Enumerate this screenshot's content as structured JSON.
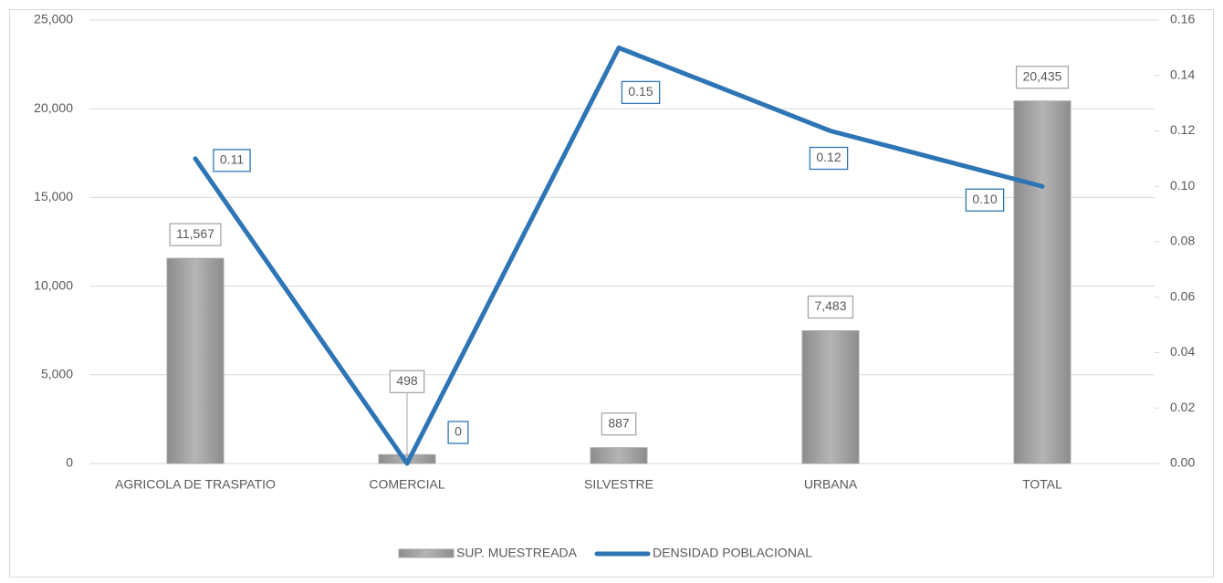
{
  "chart_data": {
    "type": "bar_line",
    "categories": [
      "AGRICOLA DE TRASPATIO",
      "COMERCIAL",
      "SILVESTRE",
      "URBANA",
      "TOTAL"
    ],
    "series": [
      {
        "name": "SUP. MUESTREADA",
        "type": "bar",
        "color": "#a6a6a6",
        "values": [
          11567,
          498,
          887,
          7483,
          20435
        ],
        "value_labels": [
          "11,567",
          "498",
          "887",
          "7,483",
          "20,435"
        ]
      },
      {
        "name": "DENSIDAD POBLACIONAL",
        "type": "line",
        "axis": "y2",
        "color": "#2e75b6",
        "values": [
          0.11,
          0,
          0.15,
          0.12,
          0.1
        ],
        "value_labels": [
          "0.11",
          "0",
          "0.15",
          "0.12",
          "0.10"
        ]
      }
    ],
    "ylim": [
      0,
      25000
    ],
    "yticks": [
      0,
      {
        "value": 5000,
        "label": "5,000"
      },
      {
        "value": 10000,
        "label": "10,000"
      },
      {
        "value": 15000,
        "label": "15,000"
      },
      {
        "value": 20000,
        "label": "20,000"
      },
      {
        "value": 25000,
        "label": "25,000"
      }
    ],
    "y2lim": [
      0,
      0.16
    ],
    "y2ticks": [
      {
        "value": 0,
        "label": "0.00"
      },
      0.02,
      0.04,
      0.06,
      0.08,
      {
        "value": 0.1,
        "label": "0.10"
      },
      0.12,
      0.14,
      0.16
    ],
    "grid": true
  }
}
